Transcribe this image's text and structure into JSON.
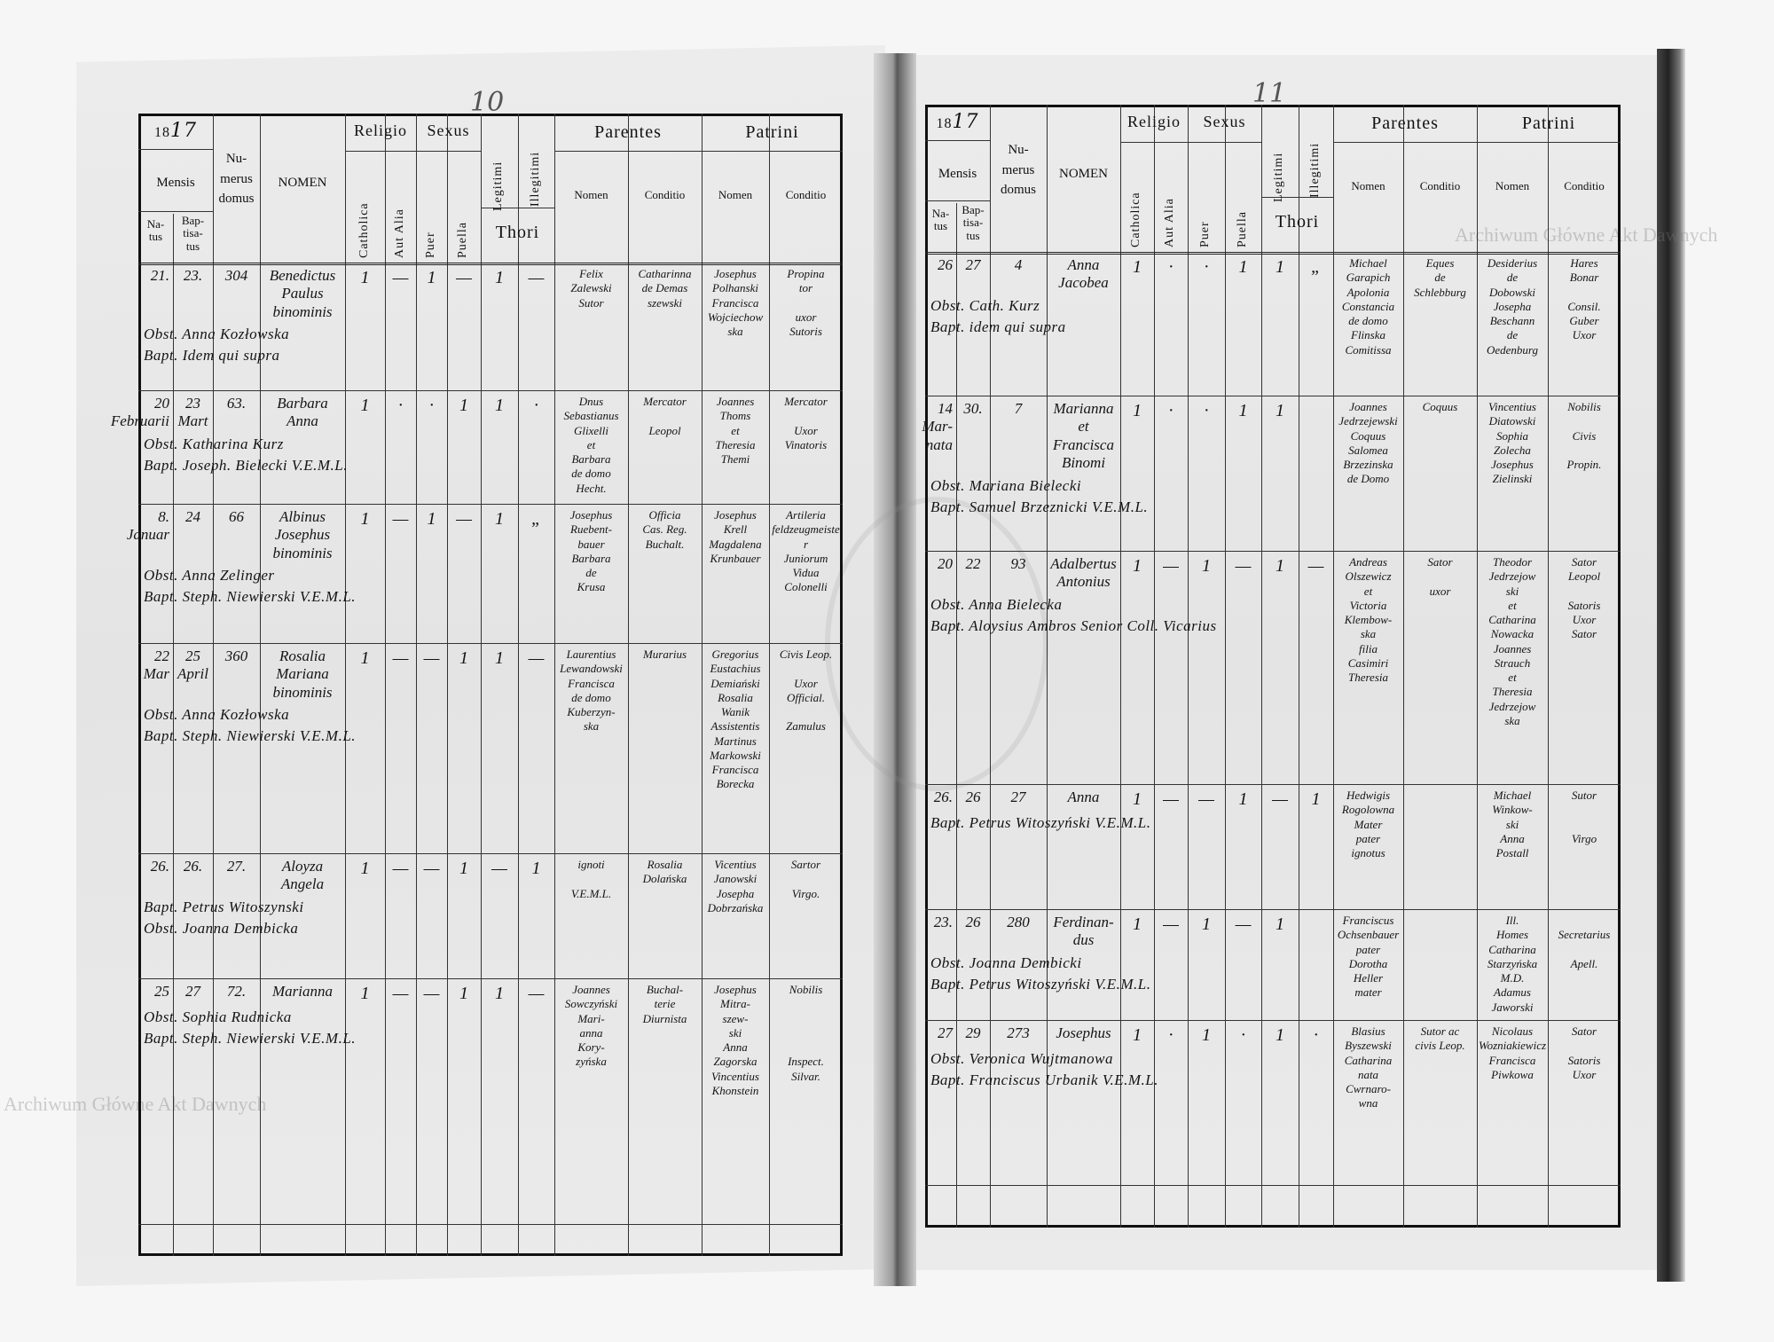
{
  "watermark": "Archiwum Główne Akt Dawnych",
  "colors": {
    "ink": "#111111",
    "paper": "#e8e8e8",
    "watermark": "#a0a0a0"
  },
  "header": {
    "year_printed": "18",
    "year_written": "17",
    "mensis": "Mensis",
    "natus": "Na-\ntus",
    "baptisatus": "Bap-\ntisa-\ntus",
    "numerus_domus": "Nu-\nmerus\ndomus",
    "nomen": "NOMEN",
    "religio": "Religio",
    "catholica": "Catholica",
    "aut_alia": "Aut Alia",
    "sexus": "Sexus",
    "puer": "Puer",
    "puella": "Puella",
    "legitimi": "Legitimi",
    "illegitimi": "Illegitimi",
    "thori": "Thori",
    "parentes": "Parentes",
    "patrini": "Patrini",
    "sub_nomen": "Nomen",
    "sub_conditio": "Conditio"
  },
  "pages": [
    {
      "page_number": "10",
      "rows": [
        {
          "natus": "21.",
          "baptisatus": "23.",
          "domus": "304",
          "nomen": "Benedictus\nPaulus\nbinominis",
          "catholica": "1",
          "aut_alia": "—",
          "puer": "1",
          "puella": "—",
          "legitimi": "1",
          "illegitimi": "—",
          "parentes_nomen": "Felix\nZalewski\nSutor",
          "parentes_conditio": "Catharinna\nde Demas\nszewski",
          "patrini_nomen": "Josephus\nPolhanski\nFrancisca\nWojciechow\nska",
          "patrini_conditio": "Propina\ntor\n\nuxor\nSutoris",
          "notes": [
            "Obst. Anna Kozłowska",
            "Bapt. Idem qui supra"
          ]
        },
        {
          "natus": "20\nFebruarii",
          "baptisatus": "23\nMart",
          "domus": "63.",
          "nomen": "Barbara\nAnna",
          "catholica": "1",
          "aut_alia": "·",
          "puer": "·",
          "puella": "1",
          "legitimi": "1",
          "illegitimi": "·",
          "parentes_nomen": "Dnus\nSebastianus\nGlixelli\net\nBarbara\nde domo\nHecht.",
          "parentes_conditio": "Mercator\n\nLeopol",
          "patrini_nomen": "Joannes\nThoms\net\nTheresia\nThemi",
          "patrini_conditio": "Mercator\n\nUxor\nVinatoris",
          "notes": [
            "Obst. Katharina Kurz",
            "Bapt. Joseph. Bielecki V.E.M.L."
          ]
        },
        {
          "natus": "8.\nJanuar",
          "baptisatus": "24",
          "domus": "66",
          "nomen": "Albinus\nJosephus\nbinominis",
          "catholica": "1",
          "aut_alia": "—",
          "puer": "1",
          "puella": "—",
          "legitimi": "1",
          "illegitimi": "„",
          "parentes_nomen": "Josephus\nRuebent-\nbauer\nBarbara\nde\nKrusa",
          "parentes_conditio": "Officia\nCas. Reg.\nBuchalt.",
          "patrini_nomen": "Josephus\nKrell\nMagdalena\nKrunbauer",
          "patrini_conditio": "Artileria\nfeldzeugmeister\nJuniorum\nVidua\nColonelli",
          "notes": [
            "Obst. Anna Zelinger",
            "Bapt. Steph. Niewierski V.E.M.L."
          ]
        },
        {
          "natus": "22\nMar",
          "baptisatus": "25\nApril",
          "domus": "360",
          "nomen": "Rosalia\nMariana\nbinominis",
          "catholica": "1",
          "aut_alia": "—",
          "puer": "—",
          "puella": "1",
          "legitimi": "1",
          "illegitimi": "—",
          "parentes_nomen": "Laurentius\nLewandowski\nFrancisca\nde domo\nKuberzyn-\nska",
          "parentes_conditio": "Murarius",
          "patrini_nomen": "Gregorius\nEustachius\nDemiański\nRosalia\nWanik\nAssistentis\nMartinus\nMarkowski\nFrancisca\nBorecka",
          "patrini_conditio": "Civis Leop.\n\nUxor\nOfficial.\n\nZamulus",
          "notes": [
            "Obst. Anna Kozłowska",
            "Bapt. Steph. Niewierski V.E.M.L."
          ]
        },
        {
          "natus": "26.",
          "baptisatus": "26.",
          "domus": "27.",
          "nomen": "Aloyza\nAngela",
          "catholica": "1",
          "aut_alia": "—",
          "puer": "—",
          "puella": "1",
          "legitimi": "—",
          "illegitimi": "1",
          "parentes_nomen": "ignoti\n\nV.E.M.L.",
          "parentes_conditio": "Rosalia\nDolańska",
          "patrini_nomen": "Vicentius\nJanowski\nJosepha\nDobrzańska",
          "patrini_conditio": "Sartor\n\nVirgo.",
          "notes": [
            "Bapt. Petrus Witoszynski",
            "Obst. Joanna Dembicka"
          ]
        },
        {
          "natus": "25",
          "baptisatus": "27",
          "domus": "72.",
          "nomen": "Marianna",
          "catholica": "1",
          "aut_alia": "—",
          "puer": "—",
          "puella": "1",
          "legitimi": "1",
          "illegitimi": "—",
          "parentes_nomen": "Joannes\nSowczyński\nMari-\nanna\nKory-\nzyńska",
          "parentes_conditio": "Buchal-\nterie\nDiurnista",
          "patrini_nomen": "Josephus\nMitra-\nszew-\nski\nAnna\nZagorska\nVincentius\nKhonstein",
          "patrini_conditio": "Nobilis\n\n\n\n\nInspect.\nSilvar.",
          "notes": [
            "Obst. Sophia Rudnicka",
            "Bapt. Steph. Niewierski V.E.M.L."
          ]
        }
      ]
    },
    {
      "page_number": "11",
      "rows": [
        {
          "natus": "26",
          "baptisatus": "27",
          "domus": "4",
          "nomen": "Anna\nJacobea",
          "catholica": "1",
          "aut_alia": "·",
          "puer": "·",
          "puella": "1",
          "legitimi": "1",
          "illegitimi": "„",
          "parentes_nomen": "Michael\nGarapich\nApolonia\nConstancia\nde domo\nFlinska\nComitissa",
          "parentes_conditio": "Eques\nde\nSchlebburg",
          "patrini_nomen": "Desiderius\nde\nDobowski\nJosepha\nBeschann\nde\nOedenburg",
          "patrini_conditio": "Hares\nBonar\n\nConsil.\nGuber\nUxor",
          "notes": [
            "Obst. Cath. Kurz",
            "Bapt. idem qui supra"
          ]
        },
        {
          "natus": "14\nMar-\nnata",
          "baptisatus": "30.",
          "domus": "7",
          "nomen": "Marianna\net\nFrancisca\nBinomi",
          "catholica": "1",
          "aut_alia": "·",
          "puer": "·",
          "puella": "1",
          "legitimi": "1",
          "illegitimi": "",
          "parentes_nomen": "Joannes\nJedrzejewski\nCoquus\nSalomea\nBrzezinska\nde Domo",
          "parentes_conditio": "Coquus",
          "patrini_nomen": "Vincentius\nDiatowski\nSophia\nZolecha\nJosephus\nZielinski",
          "patrini_conditio": "Nobilis\n\nCivis\n\nPropin.",
          "notes": [
            "Obst. Mariana Bielecki",
            "Bapt. Samuel Brzeznicki V.E.M.L."
          ]
        },
        {
          "natus": "20",
          "baptisatus": "22",
          "domus": "93",
          "nomen": "Adalbertus\nAntonius",
          "catholica": "1",
          "aut_alia": "—",
          "puer": "1",
          "puella": "—",
          "legitimi": "1",
          "illegitimi": "—",
          "parentes_nomen": "Andreas\nOlszewicz\net\nVictoria\nKlembow-\nska\nfilia\nCasimiri\nTheresia",
          "parentes_conditio": "Sator\n\nuxor",
          "patrini_nomen": "Theodor\nJedrzejow\nski\net\nCatharina\nNowacka\nJoannes\nStrauch\net\nTheresia\nJedrzejow\nska",
          "patrini_conditio": "Sator\nLeopol\n\nSatoris\nUxor\nSator",
          "notes": [
            "Obst. Anna Bielecka",
            "Bapt. Aloysius Ambros Senior Coll. Vicarius"
          ]
        },
        {
          "natus": "26.",
          "baptisatus": "26",
          "domus": "27",
          "nomen": "Anna",
          "catholica": "1",
          "aut_alia": "—",
          "puer": "—",
          "puella": "1",
          "legitimi": "—",
          "illegitimi": "1",
          "parentes_nomen": "Hedwigis\nRogolowna\nMater\npater\nignotus",
          "parentes_conditio": "",
          "patrini_nomen": "Michael\nWinkow-\nski\nAnna\nPostall",
          "patrini_conditio": "Sutor\n\n\nVirgo",
          "notes": [
            "Bapt. Petrus Witoszyński V.E.M.L."
          ]
        },
        {
          "natus": "23.",
          "baptisatus": "26",
          "domus": "280",
          "nomen": "Ferdinan-\ndus",
          "catholica": "1",
          "aut_alia": "—",
          "puer": "1",
          "puella": "—",
          "legitimi": "1",
          "illegitimi": "",
          "parentes_nomen": "Franciscus\nOchsenbauer\npater\nDorotha\nHeller\nmater",
          "parentes_conditio": "",
          "patrini_nomen": "Ill.\nHomes\nCatharina\nStarzyńska\nM.D.\nAdamus\nJaworski",
          "patrini_conditio": "\nSecretarius\n\nApell.",
          "notes": [
            "Obst. Joanna Dembicki",
            "Bapt. Petrus Witoszyński V.E.M.L."
          ]
        },
        {
          "natus": "27",
          "baptisatus": "29",
          "domus": "273",
          "nomen": "Josephus",
          "catholica": "1",
          "aut_alia": "·",
          "puer": "1",
          "puella": "·",
          "legitimi": "1",
          "illegitimi": "·",
          "parentes_nomen": "Blasius\nByszewski\nCatharina\nnata\nCwrnaro-\nwna",
          "parentes_conditio": "Sutor ac\ncivis Leop.",
          "patrini_nomen": "Nicolaus\nWozniakiewicz\nFrancisca\nPiwkowa",
          "patrini_conditio": "Sator\n\nSatoris\nUxor",
          "notes": [
            "Obst. Veronica Wujtmanowa",
            "Bapt. Franciscus Urbanik V.E.M.L."
          ]
        }
      ]
    }
  ]
}
